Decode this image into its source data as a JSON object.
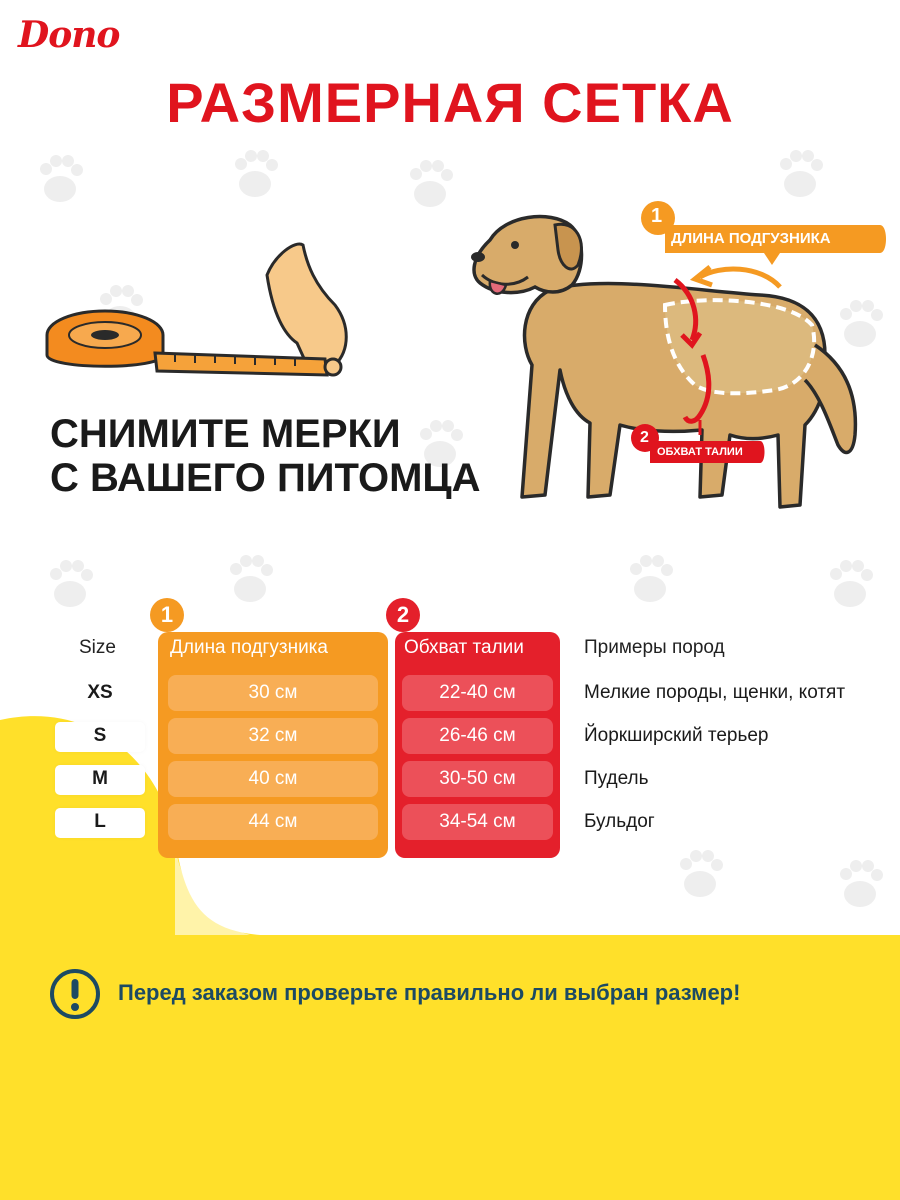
{
  "brand": {
    "logo_text": "Dono",
    "red": "#e0141e",
    "orange": "#f59a22",
    "yellow": "#ffe02a",
    "navy": "#1c4a63"
  },
  "header": {
    "title": "РАЗМЕРНАЯ СЕТКА"
  },
  "instruction": {
    "line1": "СНИМИТЕ МЕРКИ",
    "line2": "С ВАШЕГО ПИТОМЦА"
  },
  "diagram": {
    "tag1_number": "1",
    "tag1_label": "ДЛИНА ПОДГУЗНИКА",
    "tag2_number": "2",
    "tag2_label": "ОБХВАТ ТАЛИИ"
  },
  "table": {
    "size_header": "Size",
    "length_badge": "1",
    "length_header": "Длина подгузника",
    "waist_badge": "2",
    "waist_header": "Обхват талии",
    "breeds_header": "Примеры пород",
    "rows": [
      {
        "size": "XS",
        "length": "30 см",
        "waist": "22-40 см",
        "breeds": "Мелкие породы, щенки, котят"
      },
      {
        "size": "S",
        "length": "32 см",
        "waist": "26-46 см",
        "breeds": "Йоркширский терьер"
      },
      {
        "size": "M",
        "length": "40 см",
        "waist": "30-50 см",
        "breeds": "Пудель"
      },
      {
        "size": "L",
        "length": "44 см",
        "waist": "34-54 см",
        "breeds": "Бульдог"
      }
    ]
  },
  "notice": {
    "icon": "exclamation-icon",
    "text": "Перед заказом проверьте правильно ли выбран размер!"
  }
}
